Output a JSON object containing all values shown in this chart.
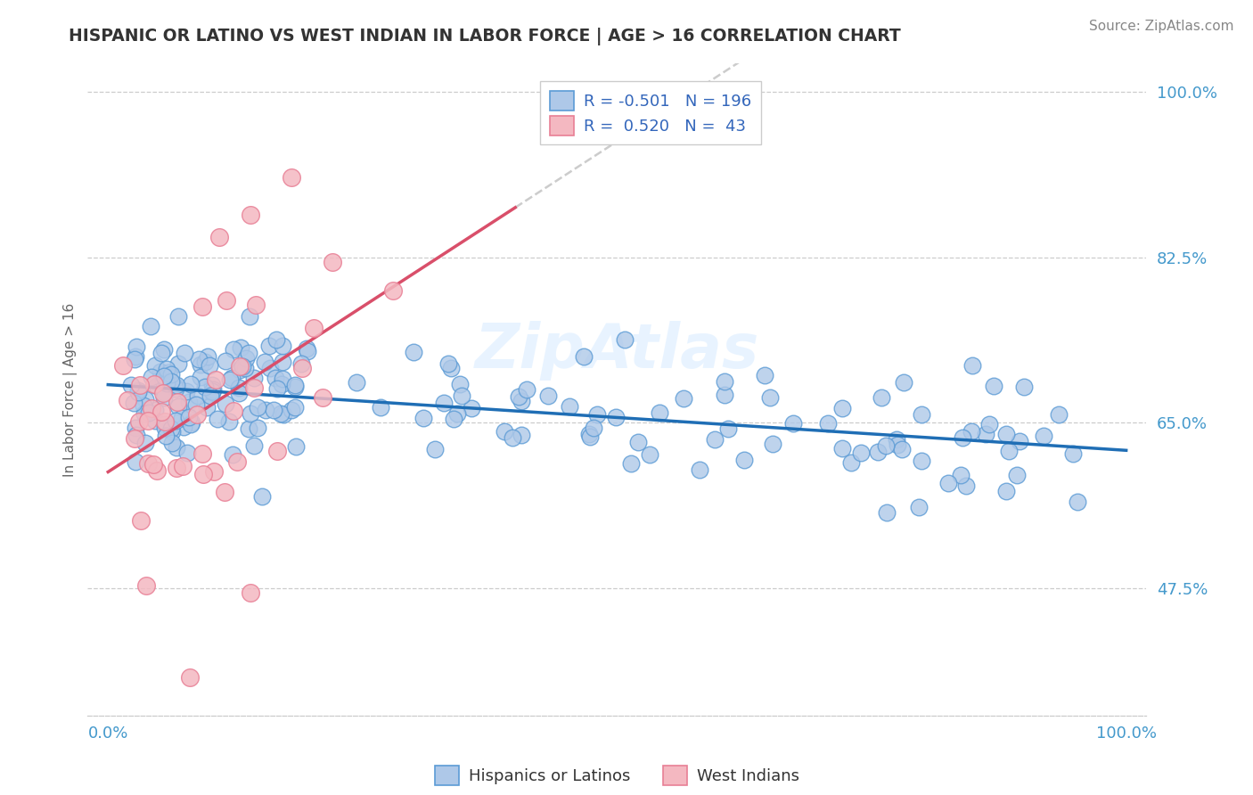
{
  "title": "HISPANIC OR LATINO VS WEST INDIAN IN LABOR FORCE | AGE > 16 CORRELATION CHART",
  "source": "Source: ZipAtlas.com",
  "ylabel": "In Labor Force | Age > 16",
  "legend_R1": "-0.501",
  "legend_N1": "196",
  "legend_R2": "0.520",
  "legend_N2": "43",
  "blue_face": "#aec8e8",
  "blue_edge": "#5b9bd5",
  "blue_line": "#1f6eb5",
  "pink_face": "#f4b8c1",
  "pink_edge": "#e87f95",
  "pink_line": "#d94f6a",
  "dash_color": "#cccccc",
  "grid_color": "#cccccc",
  "title_color": "#333333",
  "axis_tick_color": "#4499cc",
  "source_color": "#888888",
  "watermark": "ZipAtlas",
  "watermark_color": "#ddeeff",
  "ytick_positions": [
    0.475,
    0.65,
    0.825,
    1.0
  ],
  "ytick_labels": [
    "47.5%",
    "65.0%",
    "82.5%",
    "100.0%"
  ],
  "xtick_positions": [
    0.0,
    1.0
  ],
  "xtick_labels": [
    "0.0%",
    "100.0%"
  ],
  "xlim": [
    -0.02,
    1.02
  ],
  "ylim": [
    0.34,
    1.03
  ]
}
